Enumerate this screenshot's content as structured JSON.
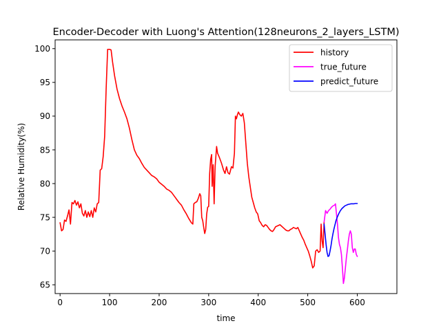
{
  "chart_data": {
    "type": "line",
    "title": "Encoder-Decoder with Luong's Attention(128neurons_2_layers_LSTM)",
    "xlabel": "time",
    "ylabel": "Relative Humidity(%)",
    "xlim": [
      -10,
      680
    ],
    "ylim": [
      63.7,
      101.3
    ],
    "xticks": [
      0,
      100,
      200,
      300,
      400,
      500,
      600
    ],
    "yticks": [
      65,
      70,
      75,
      80,
      85,
      90,
      95,
      100
    ],
    "grid": false,
    "legend_position": "top-right",
    "series": [
      {
        "name": "history",
        "color": "#ff0000",
        "points": [
          [
            0,
            74.2
          ],
          [
            3,
            73.0
          ],
          [
            6,
            73.2
          ],
          [
            9,
            74.6
          ],
          [
            12,
            74.4
          ],
          [
            15,
            75.2
          ],
          [
            18,
            76.1
          ],
          [
            21,
            74.0
          ],
          [
            24,
            77.2
          ],
          [
            27,
            77.0
          ],
          [
            30,
            77.5
          ],
          [
            33,
            76.8
          ],
          [
            36,
            77.3
          ],
          [
            39,
            76.4
          ],
          [
            42,
            77.0
          ],
          [
            45,
            75.6
          ],
          [
            48,
            75.2
          ],
          [
            51,
            76.0
          ],
          [
            54,
            75.0
          ],
          [
            57,
            75.8
          ],
          [
            60,
            75.1
          ],
          [
            63,
            76.0
          ],
          [
            66,
            75.0
          ],
          [
            69,
            76.4
          ],
          [
            72,
            75.8
          ],
          [
            75,
            77.0
          ],
          [
            78,
            77.2
          ],
          [
            81,
            82.0
          ],
          [
            84,
            82.2
          ],
          [
            87,
            84.0
          ],
          [
            90,
            87.0
          ],
          [
            93,
            94.0
          ],
          [
            96,
            99.9
          ],
          [
            100,
            99.9
          ],
          [
            103,
            99.8
          ],
          [
            106,
            98.0
          ],
          [
            110,
            96.0
          ],
          [
            115,
            94.0
          ],
          [
            120,
            92.6
          ],
          [
            125,
            91.5
          ],
          [
            130,
            90.6
          ],
          [
            135,
            89.6
          ],
          [
            140,
            88.2
          ],
          [
            145,
            86.5
          ],
          [
            150,
            85.0
          ],
          [
            155,
            84.2
          ],
          [
            160,
            83.7
          ],
          [
            165,
            83.0
          ],
          [
            170,
            82.4
          ],
          [
            175,
            82.0
          ],
          [
            180,
            81.6
          ],
          [
            185,
            81.2
          ],
          [
            190,
            81.0
          ],
          [
            195,
            80.7
          ],
          [
            200,
            80.2
          ],
          [
            205,
            79.9
          ],
          [
            210,
            79.6
          ],
          [
            215,
            79.2
          ],
          [
            220,
            79.0
          ],
          [
            225,
            78.7
          ],
          [
            230,
            78.2
          ],
          [
            235,
            77.7
          ],
          [
            240,
            77.2
          ],
          [
            245,
            76.8
          ],
          [
            250,
            76.1
          ],
          [
            255,
            75.5
          ],
          [
            260,
            74.8
          ],
          [
            265,
            74.2
          ],
          [
            268,
            74.0
          ],
          [
            270,
            77.0
          ],
          [
            273,
            77.2
          ],
          [
            276,
            77.3
          ],
          [
            279,
            77.8
          ],
          [
            282,
            78.5
          ],
          [
            284,
            78.2
          ],
          [
            286,
            75.0
          ],
          [
            288,
            74.5
          ],
          [
            290,
            73.5
          ],
          [
            292,
            72.6
          ],
          [
            294,
            73.2
          ],
          [
            296,
            75.5
          ],
          [
            298,
            76.5
          ],
          [
            300,
            76.6
          ],
          [
            302,
            81.5
          ],
          [
            304,
            83.6
          ],
          [
            306,
            84.3
          ],
          [
            307,
            79.6
          ],
          [
            309,
            82.8
          ],
          [
            311,
            77.0
          ],
          [
            313,
            82.5
          ],
          [
            316,
            85.5
          ],
          [
            318,
            84.5
          ],
          [
            322,
            83.8
          ],
          [
            326,
            83.0
          ],
          [
            330,
            82.0
          ],
          [
            333,
            81.5
          ],
          [
            336,
            82.5
          ],
          [
            339,
            81.6
          ],
          [
            342,
            81.4
          ],
          [
            346,
            82.5
          ],
          [
            349,
            82.3
          ],
          [
            352,
            84.5
          ],
          [
            354,
            90.0
          ],
          [
            356,
            89.6
          ],
          [
            358,
            90.2
          ],
          [
            360,
            90.6
          ],
          [
            363,
            90.2
          ],
          [
            366,
            90.0
          ],
          [
            369,
            90.4
          ],
          [
            372,
            89.0
          ],
          [
            375,
            86.0
          ],
          [
            378,
            83.0
          ],
          [
            381,
            81.0
          ],
          [
            384,
            79.5
          ],
          [
            387,
            78.0
          ],
          [
            390,
            77.2
          ],
          [
            393,
            76.4
          ],
          [
            396,
            75.8
          ],
          [
            399,
            75.5
          ],
          [
            402,
            74.5
          ],
          [
            405,
            74.2
          ],
          [
            408,
            73.8
          ],
          [
            411,
            73.6
          ],
          [
            414,
            73.9
          ],
          [
            417,
            73.8
          ],
          [
            420,
            73.5
          ],
          [
            423,
            73.2
          ],
          [
            426,
            73.0
          ],
          [
            429,
            72.9
          ],
          [
            432,
            73.2
          ],
          [
            435,
            73.6
          ],
          [
            438,
            73.7
          ],
          [
            441,
            73.8
          ],
          [
            444,
            73.9
          ],
          [
            447,
            73.7
          ],
          [
            450,
            73.5
          ],
          [
            453,
            73.3
          ],
          [
            456,
            73.1
          ],
          [
            459,
            73.0
          ],
          [
            462,
            73.0
          ],
          [
            465,
            73.2
          ],
          [
            468,
            73.3
          ],
          [
            471,
            73.5
          ],
          [
            474,
            73.4
          ],
          [
            477,
            73.3
          ],
          [
            480,
            73.5
          ],
          [
            483,
            73.0
          ],
          [
            486,
            72.5
          ],
          [
            489,
            72.0
          ],
          [
            492,
            71.6
          ],
          [
            495,
            71.0
          ],
          [
            498,
            70.5
          ],
          [
            501,
            70.0
          ],
          [
            504,
            69.3
          ],
          [
            507,
            68.5
          ],
          [
            510,
            67.5
          ],
          [
            513,
            67.8
          ],
          [
            516,
            70.0
          ],
          [
            519,
            70.2
          ],
          [
            522,
            69.8
          ],
          [
            525,
            70.0
          ],
          [
            527,
            74.0
          ],
          [
            529,
            71.5
          ],
          [
            531,
            70.5
          ],
          [
            533,
            74.3
          ]
        ]
      },
      {
        "name": "true_future",
        "color": "#ff00ff",
        "points": [
          [
            533,
            74.3
          ],
          [
            536,
            76.0
          ],
          [
            539,
            75.6
          ],
          [
            542,
            76.0
          ],
          [
            545,
            76.2
          ],
          [
            548,
            76.5
          ],
          [
            551,
            76.7
          ],
          [
            554,
            76.8
          ],
          [
            556,
            77.0
          ],
          [
            558,
            75.5
          ],
          [
            560,
            74.0
          ],
          [
            562,
            72.0
          ],
          [
            564,
            71.0
          ],
          [
            566,
            70.5
          ],
          [
            568,
            69.5
          ],
          [
            570,
            67.5
          ],
          [
            572,
            65.2
          ],
          [
            574,
            66.0
          ],
          [
            576,
            67.5
          ],
          [
            578,
            69.0
          ],
          [
            580,
            70.2
          ],
          [
            582,
            71.5
          ],
          [
            584,
            72.5
          ],
          [
            586,
            73.0
          ],
          [
            588,
            72.5
          ],
          [
            590,
            70.5
          ],
          [
            592,
            69.8
          ],
          [
            594,
            70.3
          ],
          [
            596,
            70.3
          ],
          [
            598,
            69.5
          ],
          [
            600,
            69.2
          ]
        ]
      },
      {
        "name": "predict_future",
        "color": "#0000ff",
        "points": [
          [
            533,
            74.0
          ],
          [
            535,
            72.5
          ],
          [
            537,
            71.0
          ],
          [
            539,
            69.8
          ],
          [
            541,
            69.2
          ],
          [
            543,
            69.3
          ],
          [
            545,
            70.0
          ],
          [
            547,
            70.8
          ],
          [
            549,
            71.8
          ],
          [
            551,
            72.6
          ],
          [
            553,
            73.3
          ],
          [
            555,
            73.9
          ],
          [
            557,
            74.5
          ],
          [
            560,
            75.1
          ],
          [
            563,
            75.6
          ],
          [
            566,
            76.0
          ],
          [
            569,
            76.3
          ],
          [
            572,
            76.5
          ],
          [
            575,
            76.7
          ],
          [
            578,
            76.8
          ],
          [
            581,
            76.9
          ],
          [
            584,
            76.95
          ],
          [
            587,
            77.0
          ],
          [
            590,
            77.0
          ],
          [
            593,
            77.0
          ],
          [
            596,
            77.05
          ],
          [
            600,
            77.05
          ]
        ]
      }
    ]
  }
}
